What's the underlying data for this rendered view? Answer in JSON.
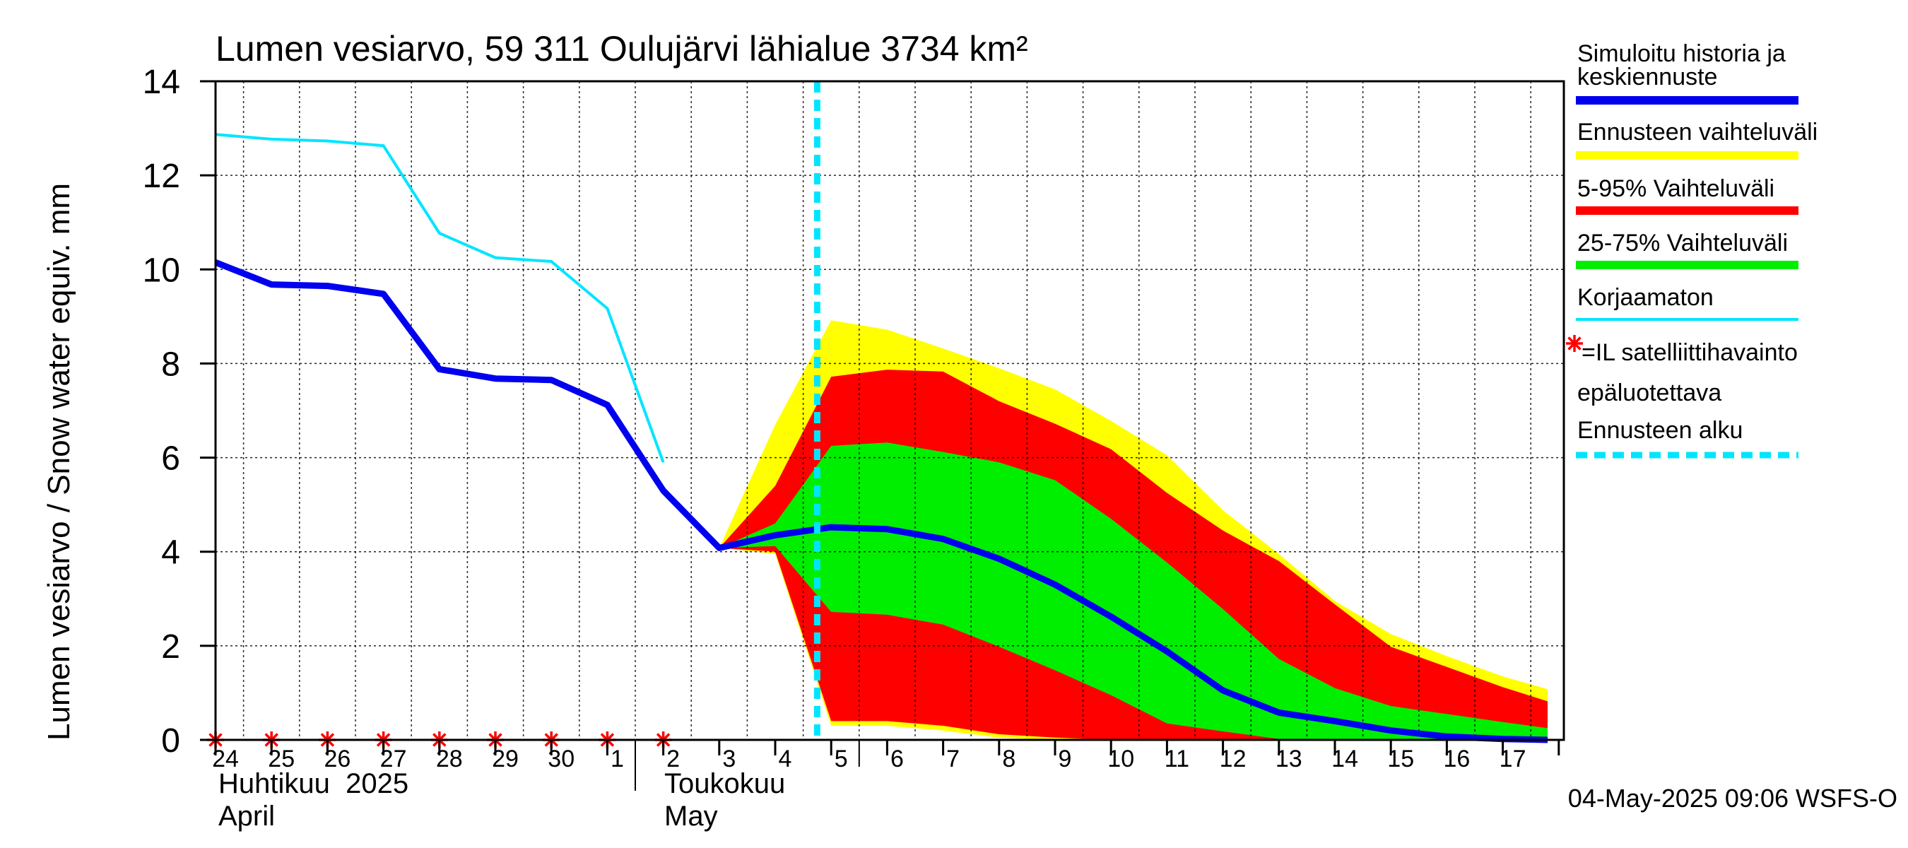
{
  "chart_data": {
    "type": "area",
    "title": "Lumen vesiarvo, 59 311 Oulujärvi lähialue 3734 km²",
    "ylabel": "Lumen vesiarvo / Snow water equiv.    mm",
    "ylim": [
      0,
      14
    ],
    "yticks": [
      "0",
      "2",
      "4",
      "6",
      "8",
      "10",
      "12",
      "14"
    ],
    "grid": true,
    "legend_position": "right",
    "x_day_labels": [
      "24",
      "25",
      "26",
      "27",
      "28",
      "29",
      "30",
      "1",
      "2",
      "3",
      "4",
      "5",
      "6",
      "7",
      "8",
      "9",
      "10",
      "11",
      "12",
      "13",
      "14",
      "15",
      "16",
      "17"
    ],
    "month_labels": [
      {
        "fi": "Huhtikuu  2025",
        "en": "April"
      },
      {
        "fi": "Toukokuu",
        "en": "May"
      }
    ],
    "footer": "04-May-2025 09:06 WSFS-O",
    "forecast_start_day": 10.75,
    "satellite_obs_days": [
      0,
      1,
      2,
      3,
      4,
      5,
      6,
      7,
      8
    ],
    "simulated": {
      "x": [
        0,
        1,
        2,
        3,
        4,
        5,
        6,
        7,
        8,
        9,
        10,
        11,
        12,
        13,
        14,
        15,
        16,
        17,
        18,
        19,
        20,
        21,
        22,
        23,
        23.8
      ],
      "y": [
        10.15,
        9.68,
        9.65,
        9.48,
        7.88,
        7.68,
        7.65,
        7.12,
        5.3,
        4.08,
        4.35,
        4.52,
        4.48,
        4.27,
        3.85,
        3.3,
        2.62,
        1.88,
        1.05,
        0.58,
        0.4,
        0.2,
        0.07,
        0.02,
        0.0
      ]
    },
    "uncorrected": {
      "x": [
        0,
        1,
        2,
        3,
        4,
        5,
        6,
        7,
        8
      ],
      "y": [
        12.87,
        12.77,
        12.73,
        12.63,
        10.77,
        10.25,
        10.17,
        9.17,
        5.9
      ]
    },
    "forecast_x": [
      9,
      10,
      11,
      12,
      13,
      14,
      15,
      16,
      17,
      18,
      19,
      20,
      21,
      22,
      23,
      23.8
    ],
    "band_5_95": {
      "upper": [
        4.08,
        5.4,
        7.72,
        7.87,
        7.83,
        7.2,
        6.72,
        6.18,
        5.25,
        4.45,
        3.8,
        2.88,
        1.98,
        1.55,
        1.12,
        0.82
      ],
      "lower": [
        4.08,
        4.0,
        0.4,
        0.4,
        0.3,
        0.12,
        0.05,
        0.0,
        0.0,
        0.0,
        0.0,
        0.0,
        0.0,
        0.0,
        0.0,
        0.0
      ]
    },
    "band_range": {
      "upper": [
        4.08,
        6.7,
        8.92,
        8.72,
        8.32,
        7.9,
        7.45,
        6.78,
        6.05,
        4.88,
        3.95,
        2.95,
        2.25,
        1.78,
        1.35,
        1.08
      ],
      "lower": [
        4.08,
        3.95,
        0.3,
        0.3,
        0.2,
        0.05,
        0.0,
        0.0,
        0.0,
        0.0,
        0.0,
        0.0,
        0.0,
        0.0,
        0.0,
        0.0
      ]
    },
    "band_25_75": {
      "upper": [
        4.08,
        4.6,
        6.25,
        6.32,
        6.12,
        5.9,
        5.52,
        4.7,
        3.77,
        2.78,
        1.72,
        1.1,
        0.72,
        0.55,
        0.38,
        0.25
      ],
      "lower": [
        4.08,
        4.12,
        2.72,
        2.66,
        2.45,
        1.98,
        1.48,
        0.95,
        0.35,
        0.18,
        0.02,
        0.0,
        0.0,
        0.0,
        0.0,
        0.0
      ]
    },
    "legend": [
      {
        "label": "Simuloitu historia ja",
        "label2": "keskiennuste",
        "color": "#0000ee",
        "style": "thick"
      },
      {
        "label": "Ennusteen vaihteluväli",
        "color": "#ffff00",
        "style": "thick"
      },
      {
        "label": "5-95% Vaihteluväli",
        "color": "#ff0000",
        "style": "thick"
      },
      {
        "label": "25-75% Vaihteluväli",
        "color": "#00ee00",
        "style": "thick"
      },
      {
        "label": "Korjaamaton",
        "color": "#00e5ff",
        "style": "thin"
      },
      {
        "label": "=IL satelliittihavainto",
        "label2": "epäluotettava",
        "color": "#ff0000",
        "style": "star"
      },
      {
        "label": "Ennusteen alku",
        "color": "#00e5ff",
        "style": "dashed"
      }
    ],
    "colors": {
      "simulated": "#0000ee",
      "range": "#ffff00",
      "p5_95": "#ff0000",
      "p25_75": "#00ee00",
      "uncorrected": "#00e5ff",
      "forecast_start": "#00e5ff",
      "obs": "#ff0000"
    }
  }
}
